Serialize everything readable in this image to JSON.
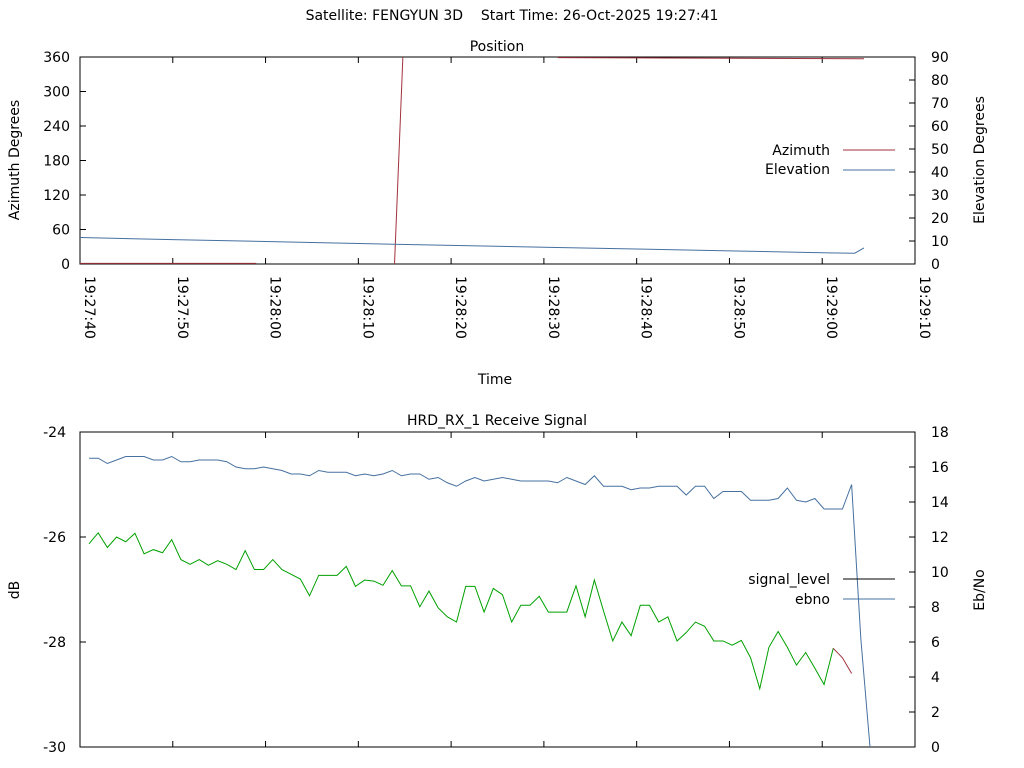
{
  "figure": {
    "title": "Satellite: FENGYUN 3D    Start Time: 26-Oct-2025 19:27:41"
  },
  "chart_data": [
    {
      "type": "line",
      "title": "Position",
      "xlabel": "Time",
      "ylabel": "Azimuth Degrees",
      "y2label": "Elevation Degrees",
      "x_ticks": [
        "19:27:40",
        "19:27:50",
        "19:28:00",
        "19:28:10",
        "19:28:20",
        "19:28:30",
        "19:28:40",
        "19:28:50",
        "19:29:00",
        "19:29:10"
      ],
      "xlim_seconds": [
        0,
        90
      ],
      "ylim": [
        0,
        360
      ],
      "y_ticks": [
        0,
        60,
        120,
        180,
        240,
        300,
        360
      ],
      "y2lim": [
        0,
        90
      ],
      "y2_ticks": [
        0,
        10,
        20,
        30,
        40,
        50,
        60,
        70,
        80,
        90
      ],
      "legend_position": "right",
      "colors": {
        "azimuth": "#a0323c",
        "elevation": "#4670a0"
      },
      "series": [
        {
          "name": "Azimuth",
          "axis": "left",
          "segments": [
            [
              [
                0,
                1
              ],
              [
                19,
                1
              ]
            ],
            [
              [
                33.9,
                0
              ],
              [
                34.8,
                360
              ]
            ],
            [
              [
                51.5,
                359
              ],
              [
                84.5,
                357
              ]
            ]
          ]
        },
        {
          "name": "Elevation",
          "axis": "right",
          "points": [
            [
              0,
              11.5
            ],
            [
              10,
              10.6
            ],
            [
              20,
              9.8
            ],
            [
              30,
              8.9
            ],
            [
              40,
              8.1
            ],
            [
              50,
              7.3
            ],
            [
              60,
              6.5
            ],
            [
              70,
              5.7
            ],
            [
              80,
              4.9
            ],
            [
              83.5,
              4.7
            ],
            [
              84.5,
              7
            ]
          ]
        }
      ]
    },
    {
      "type": "line",
      "title": "HRD_RX_1 Receive Signal",
      "ylabel": "dB",
      "y2label": "Eb/No",
      "ylim": [
        -30,
        -24
      ],
      "y_ticks": [
        -30,
        -28,
        -26,
        -24
      ],
      "y2lim": [
        0,
        18
      ],
      "y2_ticks": [
        0,
        2,
        4,
        6,
        8,
        10,
        12,
        14,
        16,
        18
      ],
      "x_points": 86,
      "legend_position": "right",
      "colors": {
        "signal_level": "#000000",
        "ebno": "#4670a0",
        "level_trace": "#00a000",
        "level_tail": "#a0323c"
      },
      "series": [
        {
          "name": "signal_level",
          "axis": "left",
          "values": [
            -26.13,
            -25.92,
            -26.2,
            -26.0,
            -26.09,
            -25.93,
            -26.32,
            -26.24,
            -26.3,
            -26.05,
            -26.43,
            -26.52,
            -26.43,
            -26.54,
            -26.45,
            -26.52,
            -26.62,
            -26.26,
            -26.62,
            -26.62,
            -26.43,
            -26.62,
            -26.71,
            -26.8,
            -27.12,
            -26.73,
            -26.73,
            -26.73,
            -26.56,
            -26.94,
            -26.82,
            -26.84,
            -26.92,
            -26.64,
            -26.93,
            -26.93,
            -27.33,
            -27.03,
            -27.35,
            -27.52,
            -27.62,
            -26.94,
            -26.94,
            -27.43,
            -26.98,
            -27.1,
            -27.62,
            -27.3,
            -27.3,
            -27.13,
            -27.43,
            -27.43,
            -27.43,
            -26.93,
            -27.52,
            -26.82,
            -27.41,
            -27.98,
            -27.62,
            -27.88,
            -27.3,
            -27.3,
            -27.62,
            -27.52,
            -27.98,
            -27.82,
            -27.62,
            -27.7,
            -27.98,
            -27.98,
            -28.06,
            -27.97,
            -28.3,
            -28.89,
            -28.1,
            -27.8,
            -28.1,
            -28.44,
            -28.2,
            -28.5,
            -28.81,
            -28.12,
            -28.3,
            -28.6
          ]
        },
        {
          "name": "ebno",
          "axis": "right",
          "values": [
            16.5,
            16.5,
            16.2,
            16.4,
            16.6,
            16.6,
            16.6,
            16.4,
            16.4,
            16.6,
            16.3,
            16.3,
            16.4,
            16.4,
            16.4,
            16.3,
            16.0,
            15.9,
            15.9,
            16.0,
            15.9,
            15.8,
            15.6,
            15.6,
            15.5,
            15.8,
            15.7,
            15.7,
            15.7,
            15.5,
            15.6,
            15.5,
            15.6,
            15.8,
            15.5,
            15.6,
            15.6,
            15.3,
            15.4,
            15.1,
            14.9,
            15.2,
            15.4,
            15.2,
            15.3,
            15.4,
            15.3,
            15.2,
            15.2,
            15.2,
            15.2,
            15.1,
            15.4,
            15.2,
            15.0,
            15.5,
            14.9,
            14.9,
            14.9,
            14.7,
            14.8,
            14.8,
            14.9,
            14.9,
            14.9,
            14.4,
            14.9,
            14.9,
            14.2,
            14.6,
            14.6,
            14.6,
            14.1,
            14.1,
            14.1,
            14.2,
            14.8,
            14.1,
            14.0,
            14.2,
            13.6,
            13.6,
            13.6,
            15.0,
            6.2,
            0.0
          ]
        }
      ]
    }
  ]
}
